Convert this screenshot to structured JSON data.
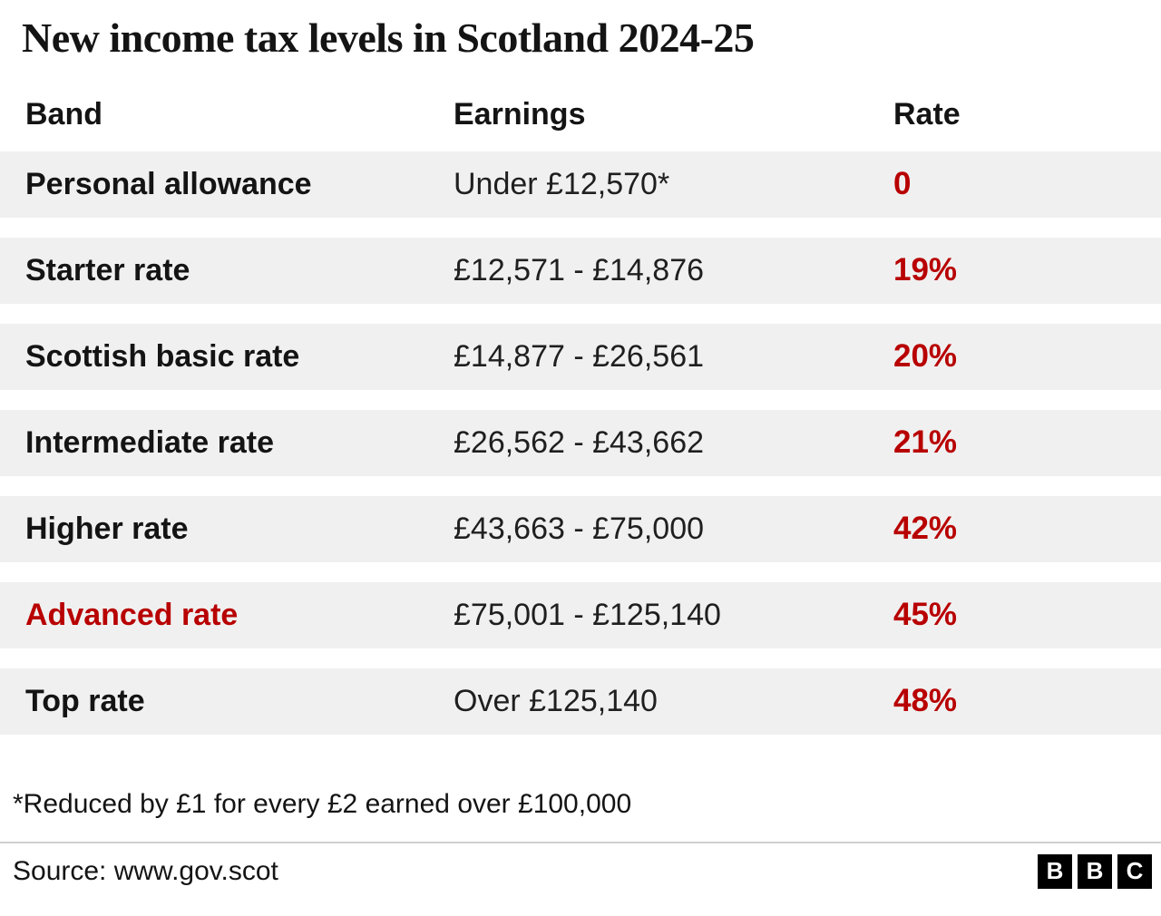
{
  "title": "New income tax levels in Scotland 2024-25",
  "table": {
    "columns": [
      "Band",
      "Earnings",
      "Rate"
    ],
    "rows": [
      {
        "band": "Personal allowance",
        "earnings": "Under £12,570*",
        "rate": "0",
        "band_red": false
      },
      {
        "band": "Starter rate",
        "earnings": "£12,571 - £14,876",
        "rate": "19%",
        "band_red": false
      },
      {
        "band": "Scottish basic rate",
        "earnings": "£14,877 - £26,561",
        "rate": "20%",
        "band_red": false
      },
      {
        "band": "Intermediate rate",
        "earnings": "£26,562 - £43,662",
        "rate": "21%",
        "band_red": false
      },
      {
        "band": "Higher rate",
        "earnings": "£43,663 - £75,000",
        "rate": "42%",
        "band_red": false
      },
      {
        "band": "Advanced rate",
        "earnings": "£75,001 - £125,140",
        "rate": "45%",
        "band_red": true
      },
      {
        "band": "Top rate",
        "earnings": "Over £125,140",
        "rate": "48%",
        "band_red": false
      }
    ]
  },
  "footnote": "*Reduced by £1 for every £2 earned over £100,000",
  "source": "Source: www.gov.scot",
  "logo_letters": [
    "B",
    "B",
    "C"
  ],
  "colors": {
    "accent_red": "#b80000",
    "row_background": "#f0f0f0",
    "text": "#141414"
  },
  "chart_data": {
    "type": "table",
    "title": "New income tax levels in Scotland 2024-25",
    "columns": [
      "Band",
      "Earnings",
      "Rate"
    ],
    "rows": [
      [
        "Personal allowance",
        "Under £12,570*",
        "0"
      ],
      [
        "Starter rate",
        "£12,571 - £14,876",
        "19%"
      ],
      [
        "Scottish basic rate",
        "£14,877 - £26,561",
        "20%"
      ],
      [
        "Intermediate rate",
        "£26,562 - £43,662",
        "21%"
      ],
      [
        "Higher rate",
        "£43,663 - £75,000",
        "42%"
      ],
      [
        "Advanced rate",
        "£75,001 - £125,140",
        "45%"
      ],
      [
        "Top rate",
        "Over £125,140",
        "48%"
      ]
    ],
    "rate_values_numeric": [
      0,
      19,
      20,
      21,
      42,
      45,
      48
    ],
    "footnote": "*Reduced by £1 for every £2 earned over £100,000",
    "source": "Source: www.gov.scot"
  }
}
